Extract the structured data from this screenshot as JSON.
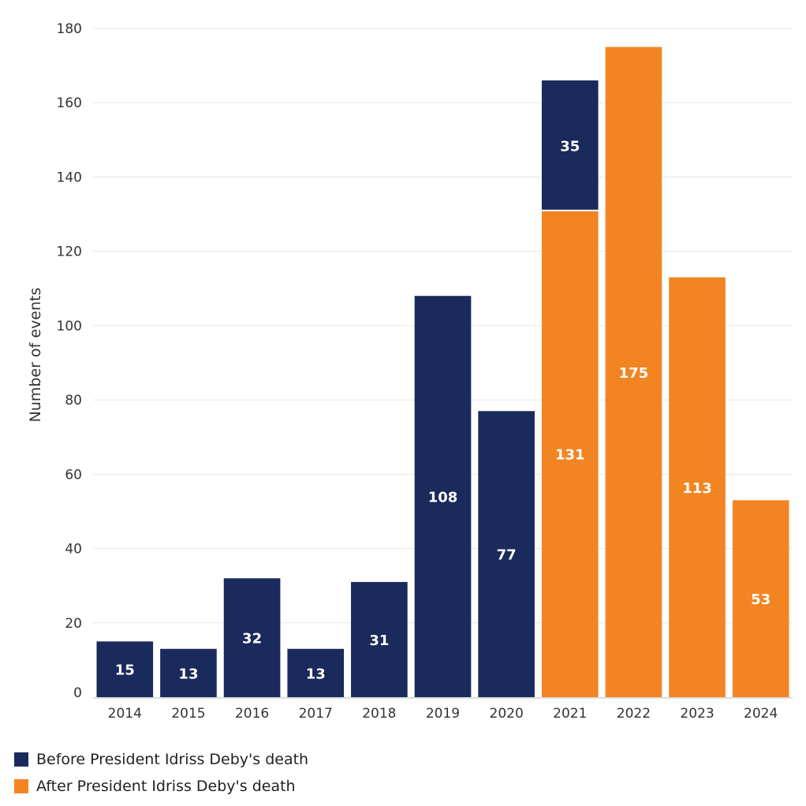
{
  "chart_data": {
    "type": "bar",
    "stacked": true,
    "categories": [
      "2014",
      "2015",
      "2016",
      "2017",
      "2018",
      "2019",
      "2020",
      "2021",
      "2022",
      "2023",
      "2024"
    ],
    "series": [
      {
        "name": "Before President Idriss Deby's death",
        "color": "#1b2a5c",
        "values": [
          15,
          13,
          32,
          13,
          31,
          108,
          77,
          35,
          0,
          0,
          0
        ]
      },
      {
        "name": "After President Idriss Deby's death",
        "color": "#f28522",
        "values": [
          0,
          0,
          0,
          0,
          0,
          0,
          0,
          131,
          175,
          113,
          53
        ]
      }
    ],
    "stack_order_bottom_to_top": [
      "After President Idriss Deby's death",
      "Before President Idriss Deby's death"
    ],
    "xlabel": "",
    "ylabel": "Number of events",
    "ylim": [
      0,
      180
    ],
    "yticks": [
      0,
      20,
      40,
      60,
      80,
      100,
      120,
      140,
      160,
      180
    ],
    "grid": true,
    "legend_position": "bottom-left"
  },
  "legend": {
    "before_label": "Before President Idriss Deby's death",
    "after_label": "After President Idriss Deby's death",
    "before_color": "#1b2a5c",
    "after_color": "#f28522"
  }
}
